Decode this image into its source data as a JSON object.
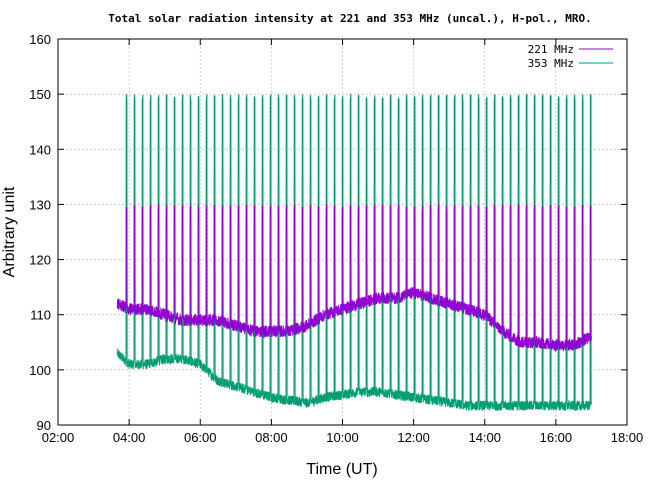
{
  "chart_data": {
    "type": "line",
    "title": "Total solar radiation intensity at 221 and 353 MHz (uncal.), H-pol., MRO.",
    "xlabel": "Time (UT)",
    "ylabel": "Arbitrary unit",
    "xlim": [
      "02:00",
      "18:00"
    ],
    "ylim": [
      90,
      160
    ],
    "xticks": [
      "02:00",
      "04:00",
      "06:00",
      "08:00",
      "10:00",
      "12:00",
      "14:00",
      "16:00",
      "18:00"
    ],
    "yticks": [
      90,
      100,
      110,
      120,
      130,
      140,
      150,
      160
    ],
    "grid": true,
    "legend_position": "top-right",
    "colors": {
      "221 MHz": "#9400d3",
      "353 MHz": "#009e73"
    },
    "calibration_pulses": {
      "start": "03:55",
      "end": "17:05",
      "interval_minutes": 13.5,
      "221 MHz_peak": 130,
      "353 MHz_peak": 150
    },
    "series": [
      {
        "name": "221 MHz",
        "x": [
          "03:40",
          "04:00",
          "04:30",
          "05:00",
          "05:30",
          "06:00",
          "06:30",
          "07:00",
          "07:30",
          "08:00",
          "08:30",
          "09:00",
          "09:30",
          "10:00",
          "10:30",
          "11:00",
          "11:30",
          "12:00",
          "12:30",
          "13:00",
          "13:30",
          "14:00",
          "14:30",
          "15:00",
          "15:30",
          "16:00",
          "16:30",
          "17:00"
        ],
        "values": [
          112,
          111,
          111,
          110,
          109,
          109,
          109,
          108,
          107,
          107,
          107,
          108,
          110,
          111,
          112,
          113,
          113,
          114,
          113,
          112,
          111,
          110,
          107,
          105,
          105,
          104.5,
          104.5,
          106
        ]
      },
      {
        "name": "353 MHz",
        "x": [
          "03:40",
          "04:00",
          "04:30",
          "05:00",
          "05:30",
          "06:00",
          "06:30",
          "07:00",
          "07:30",
          "08:00",
          "08:30",
          "09:00",
          "09:30",
          "10:00",
          "10:30",
          "11:00",
          "11:30",
          "12:00",
          "12:30",
          "13:00",
          "13:30",
          "14:00",
          "14:30",
          "15:00",
          "15:30",
          "16:00",
          "16:30",
          "17:00"
        ],
        "values": [
          103,
          101,
          101,
          102,
          102,
          101,
          98,
          97,
          96,
          95,
          94.5,
          94,
          95,
          95.5,
          96,
          96,
          95.5,
          95,
          94.5,
          94,
          93.5,
          93.5,
          93.5,
          93.5,
          93.5,
          93.5,
          93.5,
          93.5
        ]
      }
    ]
  }
}
